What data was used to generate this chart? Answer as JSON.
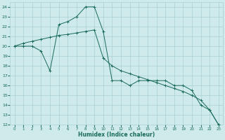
{
  "xlabel": "Humidex (Indice chaleur)",
  "bg_color": "#ceeaea",
  "grid_color": "#aacfcf",
  "line_color": "#1a6b5a",
  "xlim": [
    -0.5,
    23.5
  ],
  "ylim": [
    12,
    24.5
  ],
  "xticks": [
    0,
    1,
    2,
    3,
    4,
    5,
    6,
    7,
    8,
    9,
    10,
    11,
    12,
    13,
    14,
    15,
    16,
    17,
    18,
    19,
    20,
    21,
    22,
    23
  ],
  "yticks": [
    12,
    13,
    14,
    15,
    16,
    17,
    18,
    19,
    20,
    21,
    22,
    23,
    24
  ],
  "line1_x": [
    0,
    1,
    2,
    3,
    4,
    5,
    6,
    7,
    8,
    9,
    10,
    11,
    12,
    13,
    14,
    15,
    16,
    17,
    18,
    19,
    20,
    21,
    22,
    23
  ],
  "line1_y": [
    20,
    20,
    20,
    19.5,
    17.5,
    22.2,
    22.5,
    23,
    24,
    24,
    21.5,
    16.5,
    16.5,
    16,
    16.5,
    16.5,
    16.5,
    16.5,
    16,
    16,
    15.5,
    14,
    13.5,
    12
  ],
  "line2_x": [
    0,
    1,
    2,
    3,
    4,
    5,
    6,
    7,
    8,
    9,
    10,
    11,
    12,
    13,
    14,
    15,
    16,
    17,
    18,
    19,
    20,
    21,
    22,
    23
  ],
  "line2_y": [
    20,
    20.3,
    20.5,
    20.7,
    20.9,
    21.1,
    21.2,
    21.35,
    21.5,
    21.65,
    18.8,
    18.0,
    17.5,
    17.2,
    16.9,
    16.6,
    16.3,
    16.0,
    15.7,
    15.4,
    15.0,
    14.5,
    13.5,
    12
  ]
}
